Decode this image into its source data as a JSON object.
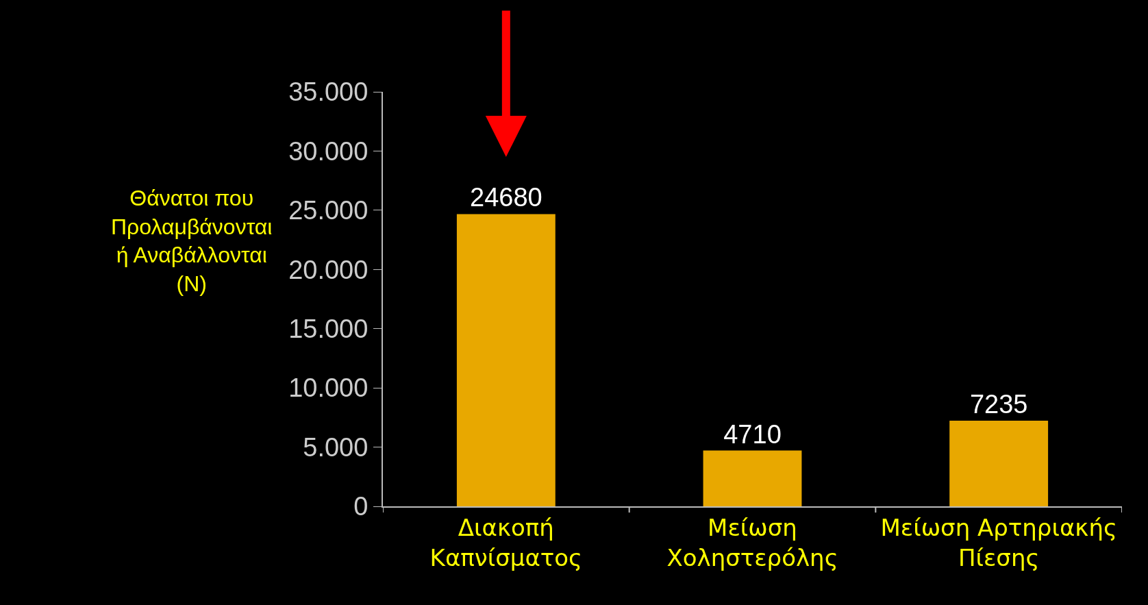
{
  "chart_data": {
    "type": "bar",
    "ylabel": "Θάνατοι που\nΠρολαμβάνονται\nή Αναβάλλονται\n(N)",
    "categories": [
      "Διακοπή\nΚαπνίσματος",
      "Μείωση\nΧοληστερόλης",
      "Μείωση Αρτηριακής\nΠίεσης"
    ],
    "values": [
      24680,
      4710,
      7235
    ],
    "color": "#e8a800",
    "data_labels": true,
    "ylim": [
      0,
      35000
    ],
    "yticks": [
      0,
      {
        "value": 5000,
        "label": "5.000"
      },
      {
        "value": 10000,
        "label": "10.000"
      },
      {
        "value": 15000,
        "label": "15.000"
      },
      {
        "value": 20000,
        "label": "20.000"
      },
      {
        "value": 25000,
        "label": "25.000"
      },
      {
        "value": 30000,
        "label": "30.000"
      },
      {
        "value": 35000,
        "label": "35.000"
      }
    ],
    "grid": false,
    "legend": false
  }
}
